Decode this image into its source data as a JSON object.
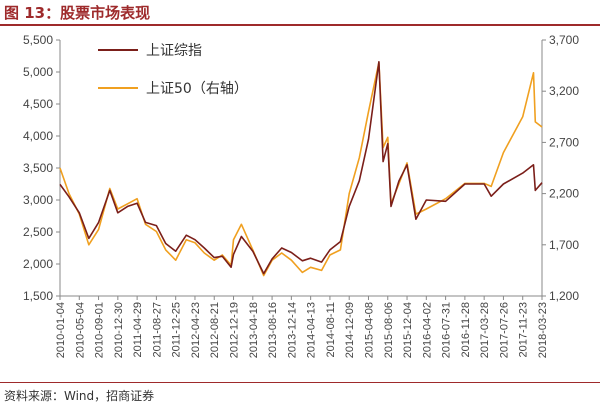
{
  "header": {
    "title": "图 13：股票市场表现"
  },
  "footer": {
    "source": "资料来源：Wind，招商证券"
  },
  "colors": {
    "accent": "#9e2a2b",
    "series_main": "#7b1f1a",
    "series_sz50": "#f0a020"
  },
  "chart_data": {
    "type": "line",
    "title": "",
    "xlabel": "",
    "ylabel": "",
    "legend_placement": "top-left",
    "grid": false,
    "x_tick_labels": [
      "2010-01-04",
      "2010-05-04",
      "2010-09-01",
      "2010-12-30",
      "2011-04-29",
      "2011-08-27",
      "2011-12-25",
      "2012-04-23",
      "2012-08-21",
      "2012-12-19",
      "2013-04-18",
      "2013-08-16",
      "2013-12-14",
      "2014-04-13",
      "2014-08-11",
      "2014-12-09",
      "2015-04-08",
      "2015-08-06",
      "2015-12-04",
      "2016-04-02",
      "2016-07-31",
      "2016-11-28",
      "2017-03-28",
      "2017-07-26",
      "2017-11-23",
      "2018-03-23"
    ],
    "y_left": {
      "ticks": [
        "1,500",
        "2,000",
        "2,500",
        "3,000",
        "3,500",
        "4,000",
        "4,500",
        "5,000",
        "5,500"
      ],
      "range": [
        1500,
        5500
      ]
    },
    "y_right": {
      "ticks": [
        "1,200",
        "1,700",
        "2,200",
        "2,700",
        "3,200",
        "3,700"
      ],
      "range": [
        1200,
        3700
      ]
    },
    "series": [
      {
        "name": "上证综指",
        "axis": "left",
        "points": [
          [
            "2010-01-04",
            3243
          ],
          [
            "2010-03-01",
            3050
          ],
          [
            "2010-05-04",
            2800
          ],
          [
            "2010-07-02",
            2400
          ],
          [
            "2010-09-01",
            2650
          ],
          [
            "2010-11-10",
            3150
          ],
          [
            "2010-12-30",
            2800
          ],
          [
            "2011-03-01",
            2900
          ],
          [
            "2011-04-29",
            2950
          ],
          [
            "2011-06-20",
            2650
          ],
          [
            "2011-08-27",
            2600
          ],
          [
            "2011-10-24",
            2320
          ],
          [
            "2011-12-25",
            2200
          ],
          [
            "2012-02-29",
            2450
          ],
          [
            "2012-04-23",
            2380
          ],
          [
            "2012-06-20",
            2250
          ],
          [
            "2012-08-21",
            2100
          ],
          [
            "2012-10-10",
            2120
          ],
          [
            "2012-12-04",
            1950
          ],
          [
            "2012-12-19",
            2150
          ],
          [
            "2013-02-06",
            2430
          ],
          [
            "2013-04-18",
            2200
          ],
          [
            "2013-06-25",
            1850
          ],
          [
            "2013-08-16",
            2080
          ],
          [
            "2013-10-15",
            2250
          ],
          [
            "2013-12-14",
            2180
          ],
          [
            "2014-02-20",
            2050
          ],
          [
            "2014-04-13",
            2090
          ],
          [
            "2014-06-20",
            2030
          ],
          [
            "2014-08-11",
            2220
          ],
          [
            "2014-10-15",
            2350
          ],
          [
            "2014-12-09",
            2900
          ],
          [
            "2015-02-10",
            3300
          ],
          [
            "2015-04-08",
            3950
          ],
          [
            "2015-06-12",
            5160
          ],
          [
            "2015-07-08",
            3600
          ],
          [
            "2015-08-06",
            3880
          ],
          [
            "2015-08-26",
            2900
          ],
          [
            "2015-10-15",
            3300
          ],
          [
            "2015-12-04",
            3550
          ],
          [
            "2016-01-28",
            2700
          ],
          [
            "2016-04-02",
            3000
          ],
          [
            "2016-07-31",
            2980
          ],
          [
            "2016-11-28",
            3250
          ],
          [
            "2017-03-28",
            3250
          ],
          [
            "2017-05-11",
            3060
          ],
          [
            "2017-07-26",
            3250
          ],
          [
            "2017-11-23",
            3420
          ],
          [
            "2018-01-29",
            3550
          ],
          [
            "2018-02-09",
            3150
          ],
          [
            "2018-03-23",
            3270
          ]
        ]
      },
      {
        "name": "上证50（右轴）",
        "axis": "right",
        "points": [
          [
            "2010-01-04",
            2450
          ],
          [
            "2010-03-01",
            2200
          ],
          [
            "2010-05-04",
            2000
          ],
          [
            "2010-07-02",
            1700
          ],
          [
            "2010-09-01",
            1850
          ],
          [
            "2010-11-10",
            2250
          ],
          [
            "2010-12-30",
            2050
          ],
          [
            "2011-03-01",
            2100
          ],
          [
            "2011-04-29",
            2150
          ],
          [
            "2011-06-20",
            1900
          ],
          [
            "2011-08-27",
            1830
          ],
          [
            "2011-10-24",
            1650
          ],
          [
            "2011-12-25",
            1550
          ],
          [
            "2012-02-29",
            1750
          ],
          [
            "2012-04-23",
            1720
          ],
          [
            "2012-06-20",
            1620
          ],
          [
            "2012-08-21",
            1550
          ],
          [
            "2012-10-10",
            1600
          ],
          [
            "2012-12-04",
            1500
          ],
          [
            "2012-12-19",
            1750
          ],
          [
            "2013-02-06",
            1900
          ],
          [
            "2013-04-18",
            1650
          ],
          [
            "2013-06-25",
            1400
          ],
          [
            "2013-08-16",
            1550
          ],
          [
            "2013-10-15",
            1620
          ],
          [
            "2013-12-14",
            1550
          ],
          [
            "2014-02-20",
            1430
          ],
          [
            "2014-04-13",
            1480
          ],
          [
            "2014-06-20",
            1450
          ],
          [
            "2014-08-11",
            1600
          ],
          [
            "2014-10-15",
            1650
          ],
          [
            "2014-12-09",
            2200
          ],
          [
            "2015-02-10",
            2550
          ],
          [
            "2015-04-08",
            3000
          ],
          [
            "2015-06-12",
            3480
          ],
          [
            "2015-07-08",
            2650
          ],
          [
            "2015-08-06",
            2750
          ],
          [
            "2015-08-26",
            2100
          ],
          [
            "2015-10-15",
            2300
          ],
          [
            "2015-12-04",
            2500
          ],
          [
            "2016-01-28",
            2000
          ],
          [
            "2016-04-02",
            2050
          ],
          [
            "2016-07-31",
            2150
          ],
          [
            "2016-11-28",
            2300
          ],
          [
            "2017-03-28",
            2300
          ],
          [
            "2017-05-11",
            2270
          ],
          [
            "2017-07-26",
            2600
          ],
          [
            "2017-11-23",
            2950
          ],
          [
            "2018-01-29",
            3380
          ],
          [
            "2018-02-09",
            2900
          ],
          [
            "2018-03-23",
            2850
          ]
        ]
      }
    ]
  }
}
